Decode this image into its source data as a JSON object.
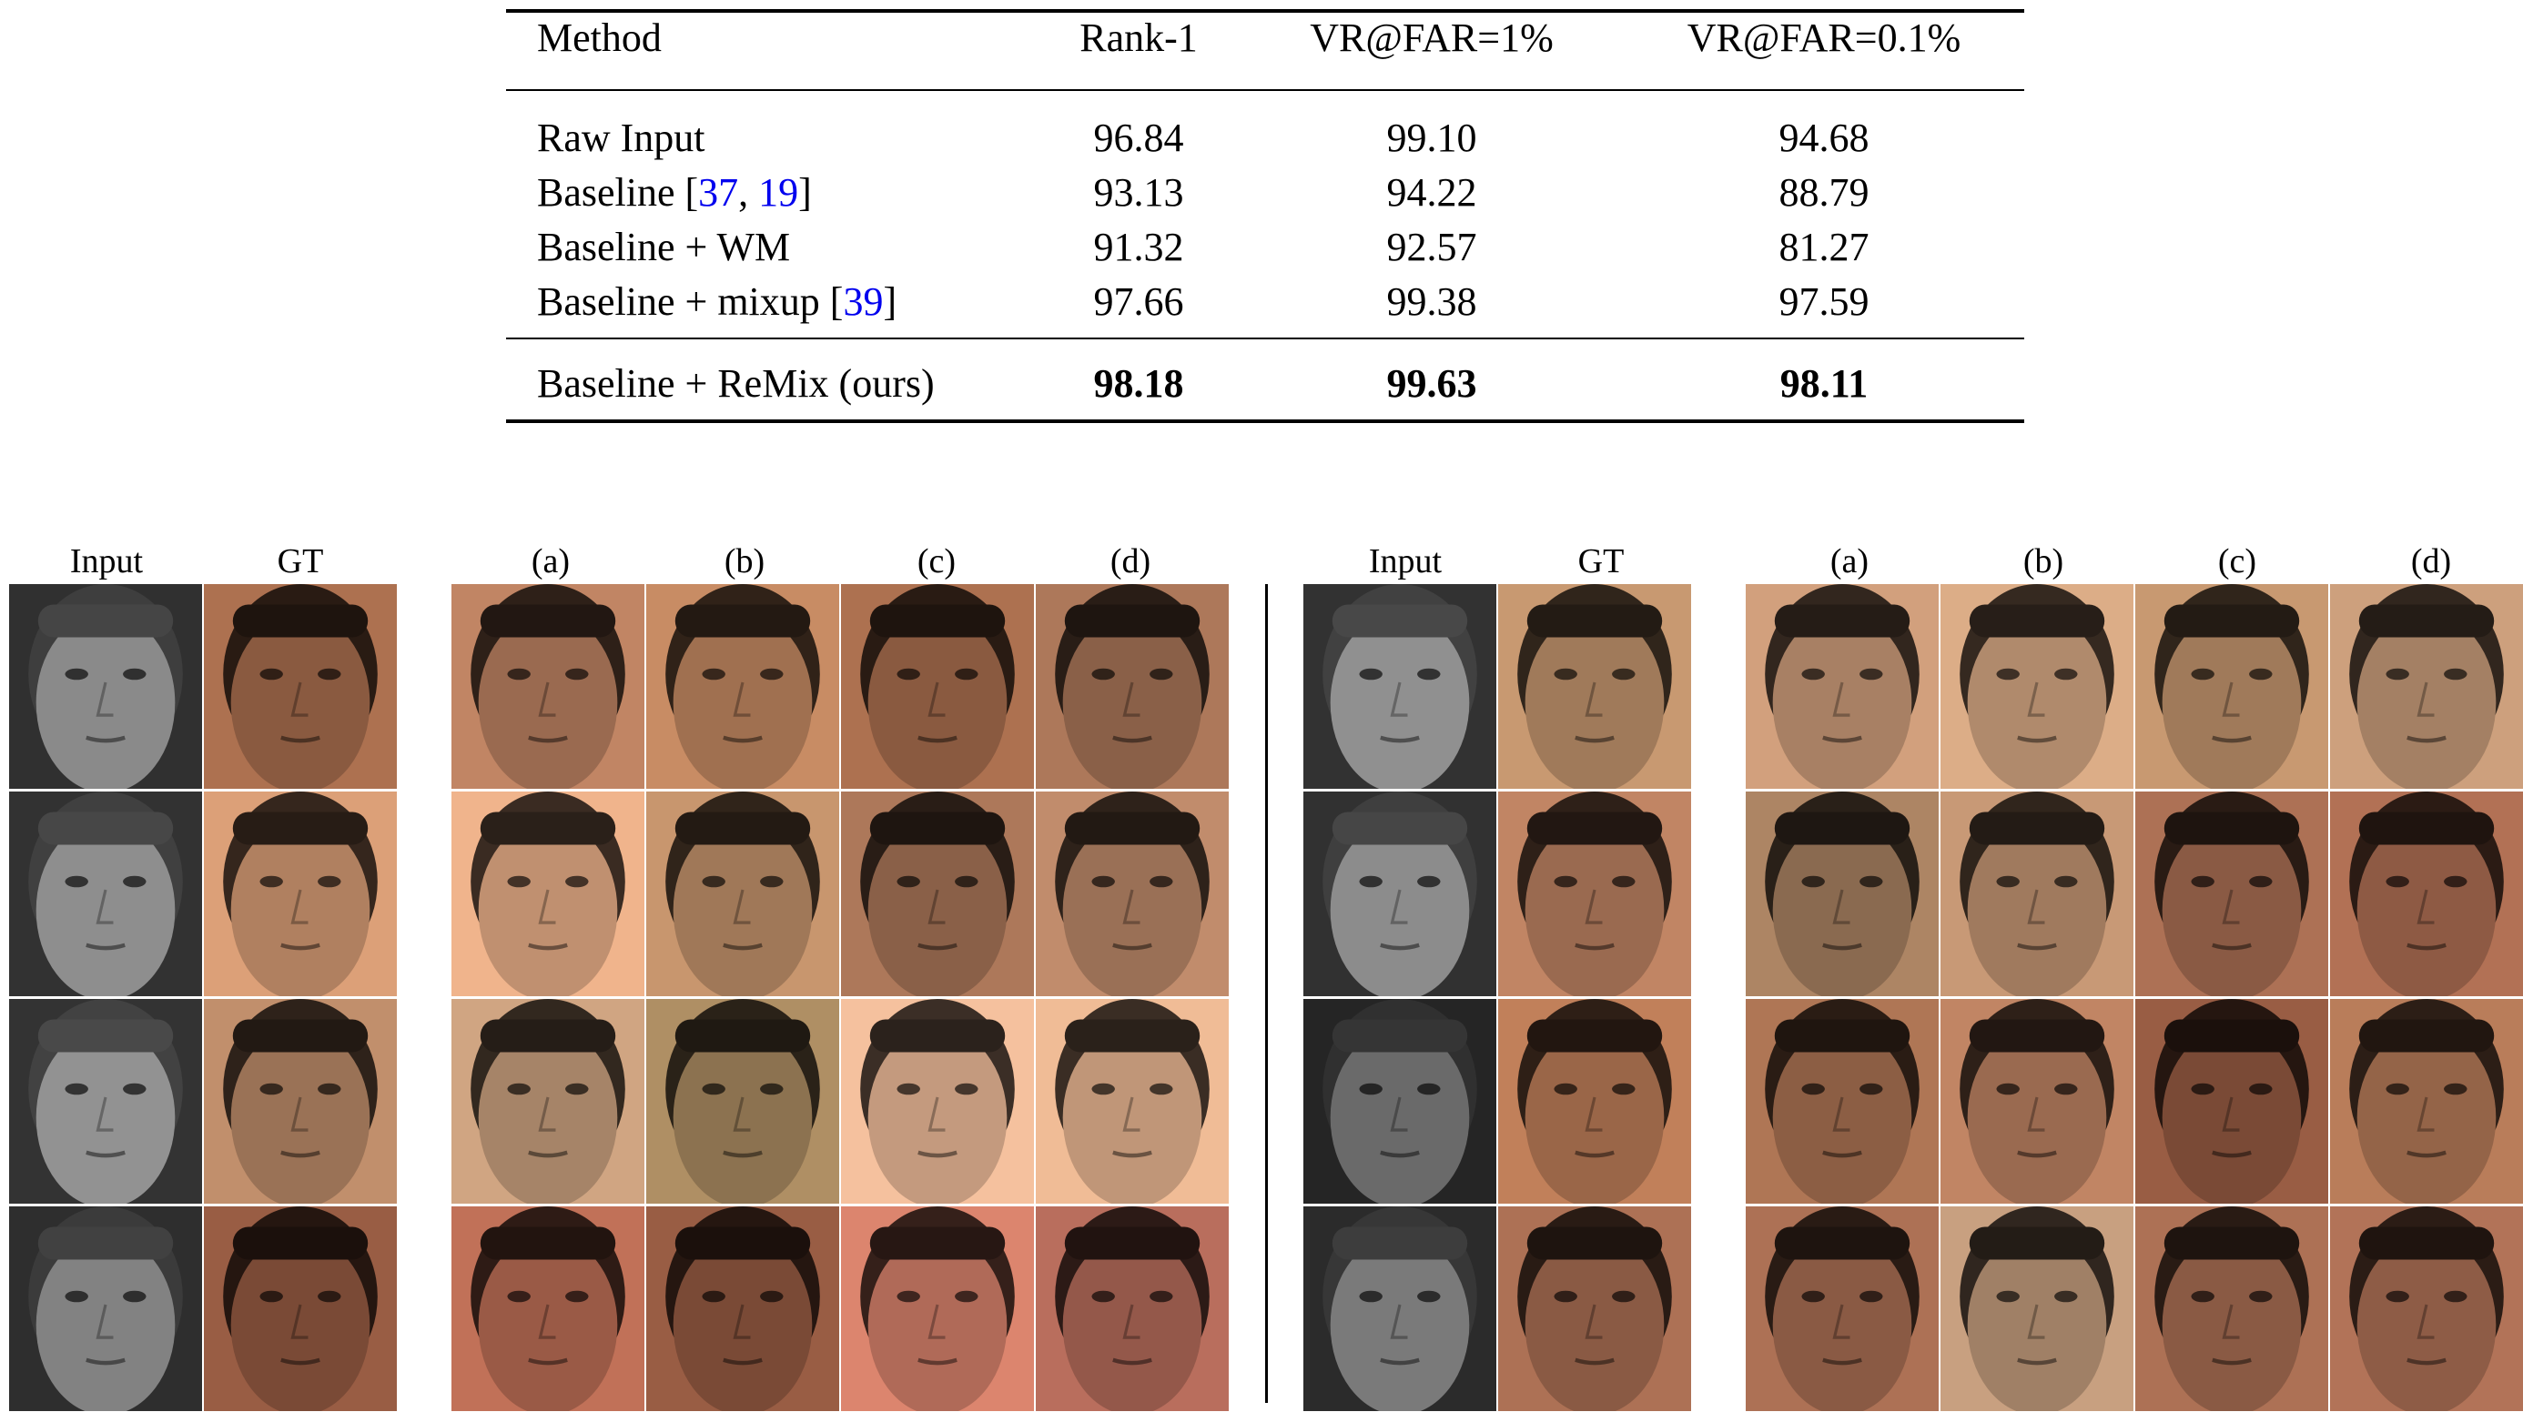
{
  "table": {
    "headers": [
      "Method",
      "Rank-1",
      "VR@FAR=1%",
      "VR@FAR=0.1%"
    ],
    "rows": [
      {
        "method": "Raw Input",
        "cites": [],
        "rank1": "96.84",
        "vr1": "99.10",
        "vr01": "94.68",
        "bold": false
      },
      {
        "method": "Baseline",
        "cites": [
          "37",
          "19"
        ],
        "rank1": "93.13",
        "vr1": "94.22",
        "vr01": "88.79",
        "bold": false
      },
      {
        "method": "Baseline + WM",
        "cites": [],
        "rank1": "91.32",
        "vr1": "92.57",
        "vr01": "81.27",
        "bold": false
      },
      {
        "method": "Baseline + mixup",
        "cites": [
          "39"
        ],
        "rank1": "97.66",
        "vr1": "99.38",
        "vr01": "97.59",
        "bold": false
      },
      {
        "method": "Baseline + ReMix (ours)",
        "cites": [],
        "rank1": "98.18",
        "vr1": "99.63",
        "vr01": "98.11",
        "bold": true
      }
    ]
  },
  "figure": {
    "labels": {
      "input": "Input",
      "gt": "GT",
      "a": "(a)",
      "b": "(b)",
      "c": "(c)",
      "d": "(d)"
    },
    "left_half": {
      "rows": [
        {
          "input": "#8a8a8a",
          "gt": "#8a5a40",
          "a": "#9a6a50",
          "b": "#a07050",
          "c": "#8a5a40",
          "d": "#8a6048"
        },
        {
          "input": "#8e8e8e",
          "gt": "#b08060",
          "a": "#c09070",
          "b": "#a07858",
          "c": "#8a6048",
          "d": "#9a7056"
        },
        {
          "input": "#929292",
          "gt": "#9a7256",
          "a": "#a68468",
          "b": "#8c7250",
          "c": "#c49a7e",
          "d": "#c09678"
        },
        {
          "input": "#828282",
          "gt": "#7a4a36",
          "a": "#9a5a46",
          "b": "#7a4a36",
          "c": "#b06a58",
          "d": "#94584a"
        }
      ]
    },
    "right_half": {
      "rows": [
        {
          "input": "#909090",
          "gt": "#a07a5a",
          "a": "#a88064",
          "b": "#b08a6c",
          "c": "#a07a5a",
          "d": "#a48064"
        },
        {
          "input": "#8c8c8c",
          "gt": "#9a6a50",
          "a": "#8a6a50",
          "b": "#a07a5e",
          "c": "#8a5a44",
          "d": "#8e5a44"
        },
        {
          "input": "#6a6a6a",
          "gt": "#9a6648",
          "a": "#8c5e44",
          "b": "#9a6a50",
          "c": "#7a4a36",
          "d": "#946448"
        },
        {
          "input": "#7a7a7a",
          "gt": "#8a5a44",
          "a": "#8a5a44",
          "b": "#a08066",
          "c": "#8a5a44",
          "d": "#8e5c46"
        }
      ]
    }
  }
}
